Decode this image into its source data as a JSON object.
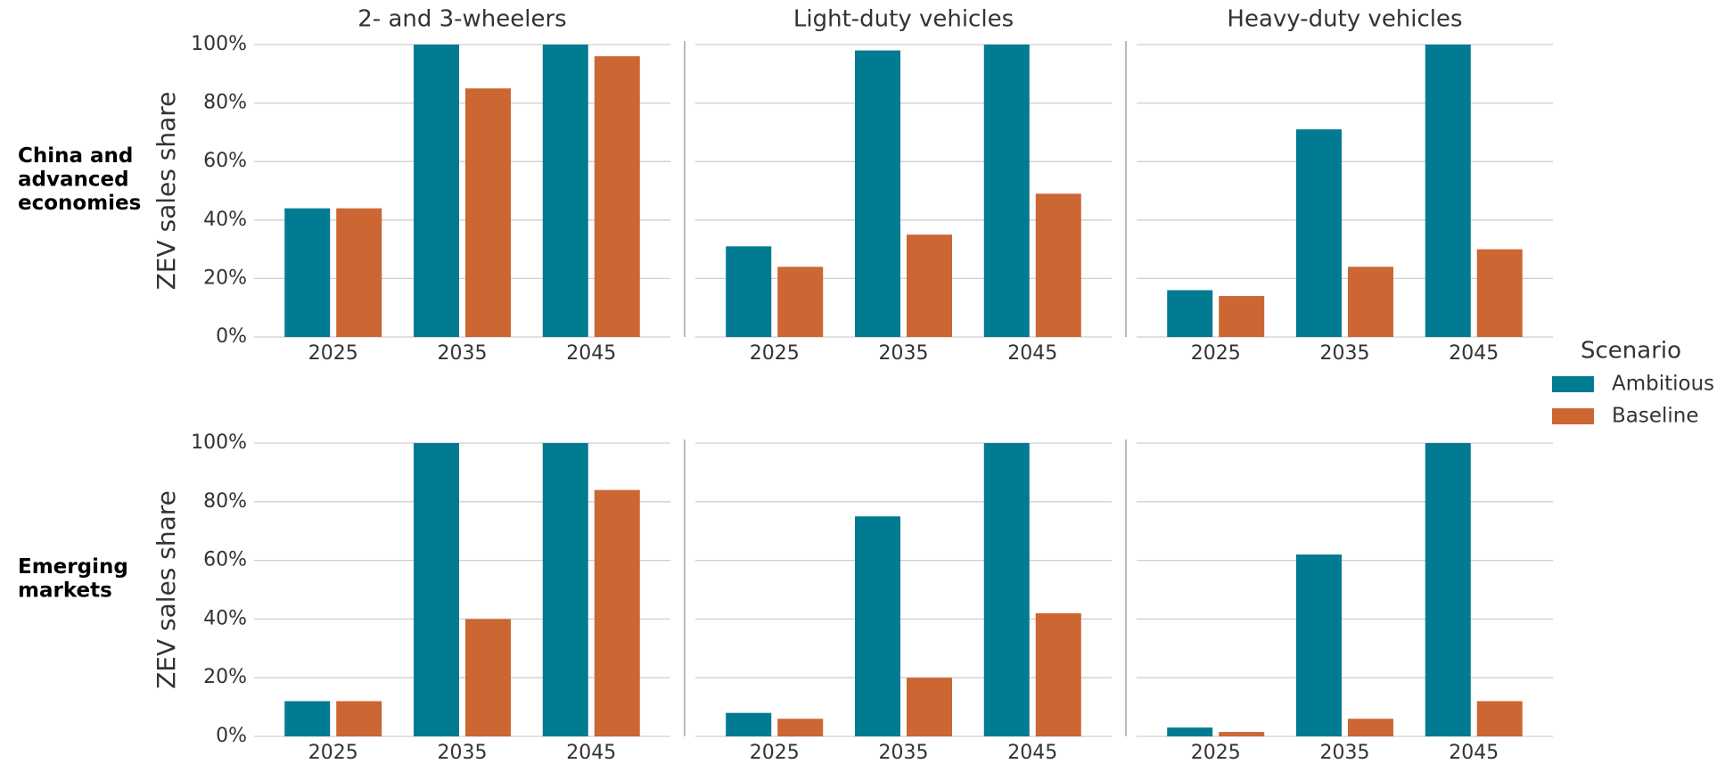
{
  "legend_title": "Scenario",
  "chart_data": [
    {
      "type": "bar",
      "title": "2- and 3-wheelers",
      "row_label": [
        "China and",
        "advanced",
        "economies"
      ],
      "ylabel": "ZEV sales share",
      "categories": [
        "2025",
        "2035",
        "2045"
      ],
      "series": [
        {
          "name": "Ambitious",
          "color": "#007b91",
          "values": [
            44,
            100,
            100
          ]
        },
        {
          "name": "Baseline",
          "color": "#cc6633",
          "values": [
            44,
            85,
            96
          ]
        }
      ],
      "ylim": [
        0,
        100
      ],
      "yticks": [
        {
          "value": 0,
          "label": "0%"
        },
        {
          "value": 20,
          "label": "20%"
        },
        {
          "value": 40,
          "label": "40%"
        },
        {
          "value": 60,
          "label": "60%"
        },
        {
          "value": 80,
          "label": "80%"
        },
        {
          "value": 100,
          "label": "100%"
        }
      ],
      "grid": true
    },
    {
      "type": "bar",
      "title": "Light-duty vehicles",
      "categories": [
        "2025",
        "2035",
        "2045"
      ],
      "series": [
        {
          "name": "Ambitious",
          "color": "#007b91",
          "values": [
            31,
            98,
            100
          ]
        },
        {
          "name": "Baseline",
          "color": "#cc6633",
          "values": [
            24,
            35,
            49
          ]
        }
      ],
      "ylim": [
        0,
        100
      ],
      "yticks": [
        0,
        20,
        40,
        60,
        80,
        100
      ],
      "grid": true
    },
    {
      "type": "bar",
      "title": "Heavy-duty vehicles",
      "categories": [
        "2025",
        "2035",
        "2045"
      ],
      "series": [
        {
          "name": "Ambitious",
          "color": "#007b91",
          "values": [
            16,
            71,
            100
          ]
        },
        {
          "name": "Baseline",
          "color": "#cc6633",
          "values": [
            14,
            24,
            30
          ]
        }
      ],
      "ylim": [
        0,
        100
      ],
      "yticks": [
        0,
        20,
        40,
        60,
        80,
        100
      ],
      "grid": true
    },
    {
      "type": "bar",
      "row_label": [
        "Emerging",
        "markets"
      ],
      "ylabel": "ZEV sales share",
      "categories": [
        "2025",
        "2035",
        "2045"
      ],
      "series": [
        {
          "name": "Ambitious",
          "color": "#007b91",
          "values": [
            12,
            100,
            100
          ]
        },
        {
          "name": "Baseline",
          "color": "#cc6633",
          "values": [
            12,
            40,
            84
          ]
        }
      ],
      "ylim": [
        0,
        100
      ],
      "yticks": [
        {
          "value": 0,
          "label": "0%"
        },
        {
          "value": 20,
          "label": "20%"
        },
        {
          "value": 40,
          "label": "40%"
        },
        {
          "value": 60,
          "label": "60%"
        },
        {
          "value": 80,
          "label": "80%"
        },
        {
          "value": 100,
          "label": "100%"
        }
      ],
      "grid": true
    },
    {
      "type": "bar",
      "categories": [
        "2025",
        "2035",
        "2045"
      ],
      "series": [
        {
          "name": "Ambitious",
          "color": "#007b91",
          "values": [
            8,
            75,
            100
          ]
        },
        {
          "name": "Baseline",
          "color": "#cc6633",
          "values": [
            6,
            20,
            42
          ]
        }
      ],
      "ylim": [
        0,
        100
      ],
      "yticks": [
        0,
        20,
        40,
        60,
        80,
        100
      ],
      "grid": true
    },
    {
      "type": "bar",
      "categories": [
        "2025",
        "2035",
        "2045"
      ],
      "series": [
        {
          "name": "Ambitious",
          "color": "#007b91",
          "values": [
            3,
            62,
            100
          ]
        },
        {
          "name": "Baseline",
          "color": "#cc6633",
          "values": [
            1.5,
            6,
            12
          ]
        }
      ],
      "ylim": [
        0,
        100
      ],
      "yticks": [
        0,
        20,
        40,
        60,
        80,
        100
      ],
      "grid": true
    }
  ]
}
